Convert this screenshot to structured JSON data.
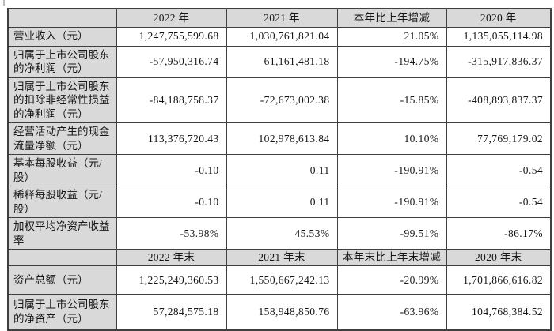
{
  "colors": {
    "header_bg": "#d9d9d9",
    "label_bg": "#d9d9d9",
    "border": "#3f3f3f",
    "text": "#161616",
    "page_bg": "#ffffff"
  },
  "table": {
    "sections": [
      {
        "columns": [
          "2022 年",
          "2021 年",
          "本年比上年增减",
          "2020 年"
        ],
        "rows": [
          {
            "label": "营业收入（元）",
            "values": [
              "1,247,755,599.68",
              "1,030,761,821.04",
              "21.05%",
              "1,135,055,114.98"
            ]
          },
          {
            "label": "归属于上市公司股东的净利润（元）",
            "values": [
              "-57,950,316.74",
              "61,161,481.18",
              "-194.75%",
              "-315,917,836.37"
            ]
          },
          {
            "label": "归属于上市公司股东的扣除非经常性损益的净利润（元）",
            "values": [
              "-84,188,758.37",
              "-72,673,002.38",
              "-15.85%",
              "-408,893,837.37"
            ]
          },
          {
            "label": "经营活动产生的现金流量净额（元）",
            "values": [
              "113,376,720.43",
              "102,978,613.84",
              "10.10%",
              "77,769,179.02"
            ]
          },
          {
            "label": "基本每股收益（元/股）",
            "values": [
              "-0.10",
              "0.11",
              "-190.91%",
              "-0.54"
            ]
          },
          {
            "label": "稀释每股收益（元/股）",
            "values": [
              "-0.10",
              "0.11",
              "-190.91%",
              "-0.54"
            ]
          },
          {
            "label": "加权平均净资产收益率",
            "values": [
              "-53.98%",
              "45.53%",
              "-99.51%",
              "-86.17%"
            ]
          }
        ]
      },
      {
        "columns": [
          "2022 年末",
          "2021 年末",
          "本年末比上年末增减",
          "2020 年末"
        ],
        "rows": [
          {
            "label": "资产总额（元）",
            "values": [
              "1,225,249,360.53",
              "1,550,667,242.13",
              "-20.99%",
              "1,701,866,616.82"
            ]
          },
          {
            "label": "归属于上市公司股东的净资产（元）",
            "values": [
              "57,284,575.18",
              "158,948,850.76",
              "-63.96%",
              "104,768,384.52"
            ]
          }
        ]
      }
    ]
  }
}
